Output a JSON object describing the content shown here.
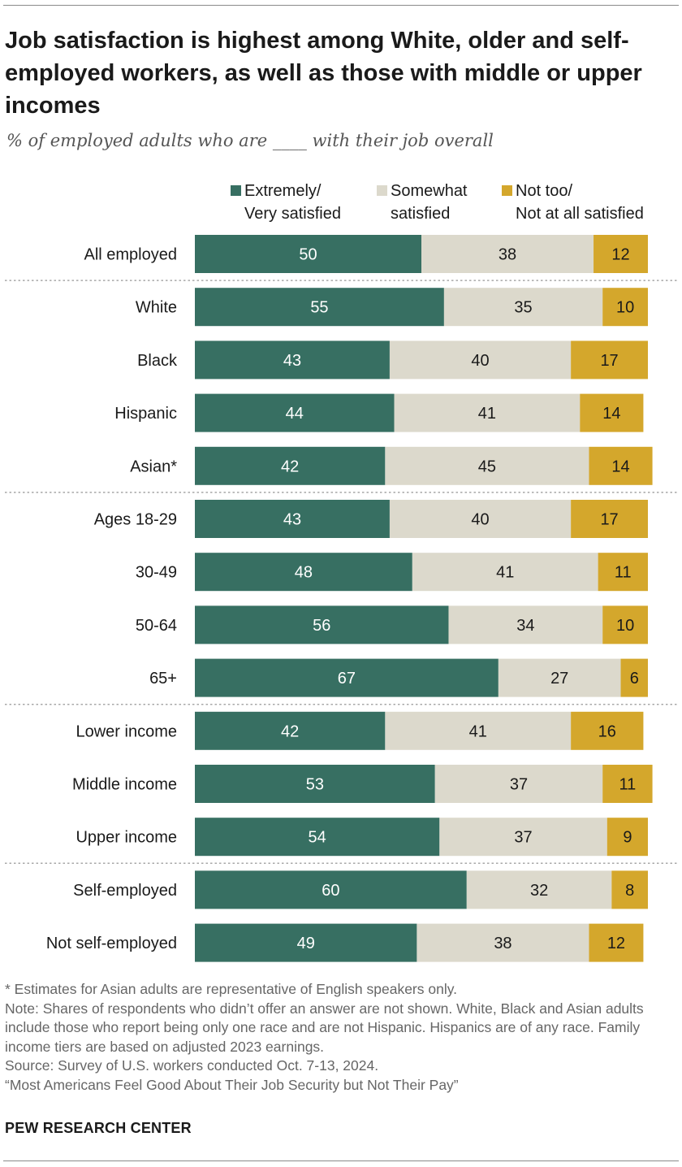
{
  "title": "Job satisfaction is highest among White, older and self-employed workers, as well as those with middle or upper incomes",
  "subtitle": "% of employed adults who are ____ with their job overall",
  "colors": {
    "very": "#376f62",
    "somewhat": "#dcd9cc",
    "not": "#d4a72c",
    "label_on_dark": "#ffffff",
    "label_on_light": "#1a1a1a"
  },
  "legend": [
    {
      "line1": "Extremely/",
      "line2": "Very satisfied",
      "color": "#376f62"
    },
    {
      "line1": "Somewhat",
      "line2": "satisfied",
      "color": "#dcd9cc"
    },
    {
      "line1": "Not too/",
      "line2": "Not at all satisfied",
      "color": "#d4a72c"
    }
  ],
  "chart_data": {
    "type": "bar",
    "orientation": "horizontal",
    "stacked": true,
    "categories": [
      "All employed",
      "White",
      "Black",
      "Hispanic",
      "Asian*",
      "Ages 18-29",
      "30-49",
      "50-64",
      "65+",
      "Lower income",
      "Middle income",
      "Upper income",
      "Self-employed",
      "Not self-employed"
    ],
    "series": [
      {
        "name": "Extremely/ Very satisfied",
        "values": [
          50,
          55,
          43,
          44,
          42,
          43,
          48,
          56,
          67,
          42,
          53,
          54,
          60,
          49
        ]
      },
      {
        "name": "Somewhat satisfied",
        "values": [
          38,
          35,
          40,
          41,
          45,
          40,
          41,
          34,
          27,
          41,
          37,
          37,
          32,
          38
        ]
      },
      {
        "name": "Not too/ Not at all satisfied",
        "values": [
          12,
          10,
          17,
          14,
          14,
          17,
          11,
          10,
          6,
          16,
          11,
          9,
          8,
          12
        ]
      }
    ],
    "group_ends_after": [
      "All employed",
      "Asian*",
      "65+",
      "Upper income"
    ],
    "xlim": [
      0,
      100
    ],
    "grid": false,
    "legend_position": "top"
  },
  "footnotes": [
    "* Estimates for Asian adults are representative of English speakers only.",
    "Note: Shares of respondents who didn’t offer an answer are not shown. White, Black and Asian adults include those who report being only one race and are not Hispanic. Hispanics are of any race. Family income tiers are based on adjusted 2023 earnings.",
    "Source: Survey of U.S. workers conducted Oct. 7-13, 2024.",
    "“Most Americans Feel Good About Their Job Security but Not Their Pay”"
  ],
  "brand": "PEW RESEARCH CENTER"
}
